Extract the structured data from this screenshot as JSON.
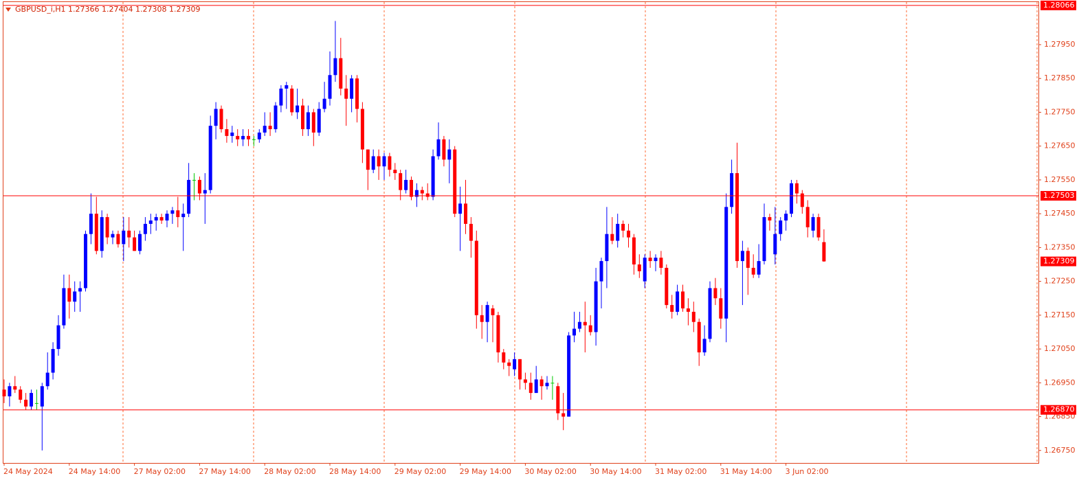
{
  "chart_data": {
    "type": "candlestick",
    "title": "GBPUSD_i,H1  1.27366 1.27404 1.27308 1.27309",
    "up_color": "#0000ff",
    "down_color": "#ff0000",
    "doji_color": "#00c800",
    "open": [
      1.2693,
      1.2691,
      1.2694,
      1.2693,
      1.269,
      1.2688,
      1.2689,
      1.2688,
      1.2694,
      1.2698,
      1.2705,
      1.2712,
      1.2723,
      1.2719,
      1.2722,
      1.2723,
      1.2739,
      1.2745,
      1.2734,
      1.2744,
      1.2738,
      1.2739,
      1.2736,
      1.274,
      1.2738,
      1.2734,
      1.2739,
      1.2742,
      1.2743,
      1.2744,
      1.2743,
      1.2745,
      1.2746,
      1.2744,
      1.2745,
      1.2755,
      1.2755,
      1.2751,
      1.2752,
      1.2771,
      1.2776,
      1.277,
      1.2768,
      1.2768,
      1.2767,
      1.2768,
      1.2767,
      1.2767,
      1.2769,
      1.2771,
      1.277,
      1.2777,
      1.2782,
      1.2782,
      1.2775,
      1.2777,
      1.277,
      1.2775,
      1.2769,
      1.2776,
      1.2779,
      1.2786,
      1.2791,
      1.2782,
      1.2779,
      1.2785,
      1.2776,
      1.2764,
      1.2758,
      1.2762,
      1.2759,
      1.2762,
      1.2758,
      1.2757,
      1.2752,
      1.2755,
      1.275,
      1.2752,
      1.2751,
      1.275,
      1.2762,
      1.2767,
      1.2761,
      1.2764,
      1.2745,
      1.2748,
      1.2742,
      1.2737,
      1.2715,
      1.2713,
      1.2717,
      1.2715,
      1.2704,
      1.2701,
      1.2699,
      1.2702,
      1.2696,
      1.2695,
      1.2692,
      1.2696,
      1.2694,
      1.2695,
      1.2694,
      1.2686,
      1.2685,
      1.2709,
      1.2711,
      1.2713,
      1.2712,
      1.271,
      1.2725,
      1.2731,
      1.2739,
      1.2737,
      1.2742,
      1.274,
      1.2738,
      1.273,
      1.2725,
      1.2732,
      1.2731,
      1.2732,
      1.2729,
      1.2718,
      1.2716,
      1.2722,
      1.2717,
      1.2716,
      1.2713,
      1.2704,
      1.2708,
      1.2723,
      1.272,
      1.2714,
      1.2747,
      1.2757,
      1.2731,
      1.2734,
      1.2729,
      1.2727,
      1.2731,
      1.2744,
      1.2733,
      1.2739,
      1.2743,
      1.2745,
      1.2754,
      1.2751,
      1.2747,
      1.274,
      1.2744,
      1.27366
    ],
    "high": [
      1.2696,
      1.2695,
      1.2697,
      1.2694,
      1.2692,
      1.2693,
      1.2693,
      1.2695,
      1.2704,
      1.2707,
      1.2715,
      1.2727,
      1.2727,
      1.2725,
      1.2725,
      1.274,
      1.2751,
      1.275,
      1.2746,
      1.2745,
      1.274,
      1.274,
      1.2744,
      1.2744,
      1.274,
      1.274,
      1.2744,
      1.2745,
      1.2745,
      1.2745,
      1.2746,
      1.2747,
      1.275,
      1.2748,
      1.276,
      1.2757,
      1.2756,
      1.2757,
      1.2774,
      1.2778,
      1.2777,
      1.2773,
      1.2771,
      1.277,
      1.277,
      1.277,
      1.2768,
      1.277,
      1.2775,
      1.2775,
      1.2778,
      1.2783,
      1.2784,
      1.2783,
      1.2782,
      1.2779,
      1.2777,
      1.2776,
      1.2778,
      1.2784,
      1.2793,
      1.2802,
      1.2797,
      1.2786,
      1.2786,
      1.2786,
      1.2778,
      1.2764,
      1.2764,
      1.2764,
      1.2763,
      1.2763,
      1.276,
      1.2758,
      1.2758,
      1.2756,
      1.2754,
      1.2753,
      1.2754,
      1.2764,
      1.2772,
      1.2768,
      1.2767,
      1.2765,
      1.2753,
      1.2755,
      1.2744,
      1.274,
      1.2718,
      1.2719,
      1.2718,
      1.2716,
      1.2705,
      1.2702,
      1.2704,
      1.2702,
      1.2698,
      1.2698,
      1.27,
      1.2697,
      1.2697,
      1.2697,
      1.2695,
      1.2692,
      1.271,
      1.2716,
      1.2716,
      1.2719,
      1.2715,
      1.2729,
      1.2732,
      1.2747,
      1.2744,
      1.2745,
      1.2743,
      1.2742,
      1.2739,
      1.2733,
      1.2733,
      1.2734,
      1.2733,
      1.2734,
      1.273,
      1.2721,
      1.2724,
      1.2724,
      1.272,
      1.2719,
      1.2714,
      1.2712,
      1.2725,
      1.2726,
      1.2723,
      1.2751,
      1.2761,
      1.2766,
      1.2737,
      1.2735,
      1.2733,
      1.2736,
      1.2748,
      1.2745,
      1.2747,
      1.2744,
      1.2746,
      1.2755,
      1.2755,
      1.2752,
      1.2749,
      1.2745,
      1.2745,
      1.27404
    ],
    "low": [
      1.2689,
      1.2688,
      1.2692,
      1.2689,
      1.2687,
      1.2687,
      1.2687,
      1.2675,
      1.2693,
      1.2696,
      1.2703,
      1.2711,
      1.2714,
      1.2716,
      1.2716,
      1.2722,
      1.2736,
      1.2733,
      1.2732,
      1.2736,
      1.2736,
      1.2735,
      1.2731,
      1.2735,
      1.2734,
      1.2733,
      1.2737,
      1.2739,
      1.274,
      1.2742,
      1.2741,
      1.2742,
      1.2741,
      1.2734,
      1.2744,
      1.2749,
      1.2749,
      1.2742,
      1.2751,
      1.2767,
      1.2769,
      1.2766,
      1.2766,
      1.2765,
      1.2765,
      1.2765,
      1.2765,
      1.2766,
      1.2768,
      1.2768,
      1.2769,
      1.2775,
      1.2776,
      1.2774,
      1.2773,
      1.2768,
      1.2768,
      1.2765,
      1.2768,
      1.2775,
      1.2777,
      1.2784,
      1.278,
      1.2771,
      1.2775,
      1.2772,
      1.276,
      1.2752,
      1.2757,
      1.2755,
      1.2755,
      1.2756,
      1.2755,
      1.2749,
      1.2751,
      1.2749,
      1.2747,
      1.2749,
      1.2749,
      1.2749,
      1.2761,
      1.2759,
      1.2754,
      1.2744,
      1.2734,
      1.2739,
      1.2732,
      1.2711,
      1.2708,
      1.2707,
      1.2707,
      1.2701,
      1.2699,
      1.2697,
      1.2697,
      1.2693,
      1.2693,
      1.269,
      1.2692,
      1.269,
      1.2693,
      1.269,
      1.2684,
      1.2681,
      1.2685,
      1.2707,
      1.271,
      1.2704,
      1.2709,
      1.2706,
      1.2717,
      1.2723,
      1.2736,
      1.2735,
      1.2738,
      1.2735,
      1.2727,
      1.2726,
      1.2723,
      1.2729,
      1.2728,
      1.2727,
      1.2717,
      1.2714,
      1.2715,
      1.2716,
      1.2712,
      1.271,
      1.27,
      1.2703,
      1.2707,
      1.2718,
      1.2711,
      1.2707,
      1.2745,
      1.2729,
      1.2718,
      1.2721,
      1.2726,
      1.2726,
      1.273,
      1.274,
      1.273,
      1.2737,
      1.274,
      1.2744,
      1.2748,
      1.2745,
      1.2738,
      1.2738,
      1.2737,
      1.27308
    ],
    "close": [
      1.2691,
      1.2694,
      1.2693,
      1.269,
      1.2688,
      1.2692,
      1.2689,
      1.2694,
      1.2698,
      1.2705,
      1.2712,
      1.2723,
      1.2719,
      1.2722,
      1.2723,
      1.2739,
      1.2745,
      1.2734,
      1.2744,
      1.2738,
      1.2739,
      1.2736,
      1.274,
      1.2738,
      1.2734,
      1.2739,
      1.2742,
      1.2743,
      1.2744,
      1.2743,
      1.2745,
      1.2746,
      1.2744,
      1.2745,
      1.2755,
      1.2755,
      1.2751,
      1.2752,
      1.2771,
      1.2776,
      1.277,
      1.2768,
      1.2769,
      1.2767,
      1.2768,
      1.2767,
      1.2767,
      1.2769,
      1.2771,
      1.277,
      1.2777,
      1.2782,
      1.2783,
      1.2775,
      1.2777,
      1.277,
      1.2775,
      1.2769,
      1.2776,
      1.2779,
      1.2786,
      1.2791,
      1.2782,
      1.2779,
      1.2785,
      1.2776,
      1.2764,
      1.2758,
      1.2762,
      1.2759,
      1.2762,
      1.2758,
      1.2757,
      1.2752,
      1.2755,
      1.275,
      1.2752,
      1.2751,
      1.275,
      1.2762,
      1.2767,
      1.2761,
      1.2764,
      1.2745,
      1.2748,
      1.2742,
      1.2737,
      1.2715,
      1.2713,
      1.2718,
      1.2715,
      1.2704,
      1.2701,
      1.27,
      1.2702,
      1.2696,
      1.2695,
      1.2692,
      1.2696,
      1.2694,
      1.2695,
      1.2695,
      1.2686,
      1.2685,
      1.2709,
      1.2711,
      1.2713,
      1.2712,
      1.271,
      1.2725,
      1.2731,
      1.2739,
      1.2737,
      1.2742,
      1.274,
      1.2738,
      1.273,
      1.2728,
      1.2732,
      1.2731,
      1.2732,
      1.2729,
      1.2718,
      1.2716,
      1.2722,
      1.2717,
      1.2716,
      1.2713,
      1.2704,
      1.2708,
      1.2723,
      1.272,
      1.2714,
      1.2747,
      1.2757,
      1.2731,
      1.2734,
      1.2729,
      1.2727,
      1.2731,
      1.2744,
      1.2743,
      1.2739,
      1.2743,
      1.2745,
      1.2754,
      1.2751,
      1.2747,
      1.2741,
      1.2744,
      1.2738,
      1.27309
    ],
    "ylim": [
      1.26713,
      1.28082
    ],
    "yticks": [
      {
        "value": 1.2675,
        "label": "1.26750"
      },
      {
        "value": 1.2685,
        "label": "1.26850"
      },
      {
        "value": 1.2695,
        "label": "1.26950"
      },
      {
        "value": 1.2705,
        "label": "1.27050"
      },
      {
        "value": 1.2715,
        "label": "1.27150"
      },
      {
        "value": 1.2725,
        "label": "1.27250"
      },
      {
        "value": 1.2735,
        "label": "1.27350"
      },
      {
        "value": 1.2745,
        "label": "1.27450"
      },
      {
        "value": 1.2755,
        "label": "1.27550"
      },
      {
        "value": 1.2765,
        "label": "1.27650"
      },
      {
        "value": 1.2775,
        "label": "1.27750"
      },
      {
        "value": 1.2785,
        "label": "1.27850"
      },
      {
        "value": 1.2795,
        "label": "1.27950"
      }
    ],
    "xticks": [
      {
        "value": 0,
        "label": "24 May 2024"
      },
      {
        "value": 12,
        "label": "24 May 14:00"
      },
      {
        "value": 24,
        "label": "27 May 02:00"
      },
      {
        "value": 36,
        "label": "27 May 14:00"
      },
      {
        "value": 48,
        "label": "28 May 02:00"
      },
      {
        "value": 60,
        "label": "28 May 14:00"
      },
      {
        "value": 72,
        "label": "29 May 02:00"
      },
      {
        "value": 84,
        "label": "29 May 14:00"
      },
      {
        "value": 96,
        "label": "30 May 02:00"
      },
      {
        "value": 108,
        "label": "30 May 14:00"
      },
      {
        "value": 120,
        "label": "31 May 02:00"
      },
      {
        "value": 132,
        "label": "31 May 14:00"
      },
      {
        "value": 144,
        "label": "3 Jun 02:00"
      }
    ],
    "levels": [
      {
        "value": 1.28066,
        "label": "1.28066"
      },
      {
        "value": 1.27503,
        "label": "1.27503"
      },
      {
        "value": 1.2687,
        "label": "1.26870"
      }
    ],
    "price_label": {
      "value": 1.27309,
      "label": "1.27309"
    },
    "grid": true
  }
}
